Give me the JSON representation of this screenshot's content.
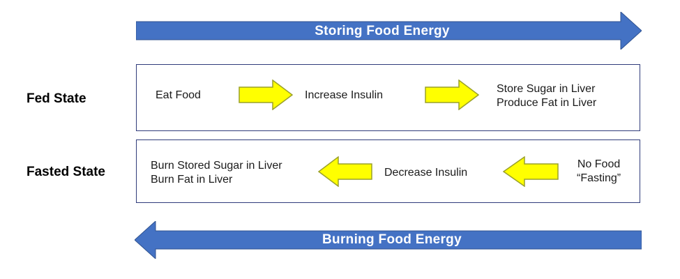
{
  "top_banner": {
    "label": "Storing Food Energy",
    "color": "#4472c4",
    "direction": "right"
  },
  "bottom_banner": {
    "label": "Burning Food Energy",
    "color": "#4472c4",
    "direction": "left"
  },
  "fed": {
    "label": "Fed State",
    "steps": [
      {
        "lines": [
          "Eat Food"
        ]
      },
      {
        "lines": [
          "Increase Insulin"
        ]
      },
      {
        "lines": [
          "Store Sugar in Liver",
          "Produce Fat in Liver"
        ]
      }
    ]
  },
  "fasted": {
    "label": "Fasted State",
    "steps": [
      {
        "lines": [
          "Burn Stored Sugar in Liver",
          "Burn Fat in Liver"
        ]
      },
      {
        "lines": [
          "Decrease Insulin"
        ]
      },
      {
        "lines": [
          "No Food",
          "“Fasting”"
        ]
      }
    ]
  },
  "step_arrow": {
    "fill": "#ffff00",
    "stroke": "#9aa02a",
    "icon": "yellow-block-arrow"
  }
}
